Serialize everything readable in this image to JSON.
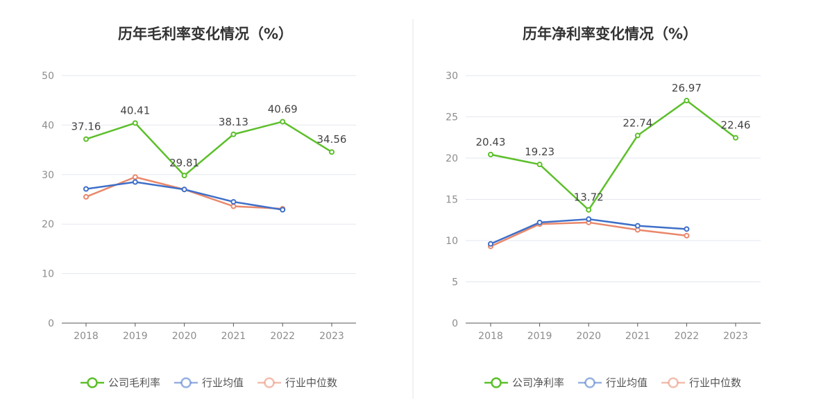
{
  "chart_data": [
    {
      "type": "line",
      "title": "历年毛利率变化情况（%）",
      "categories": [
        "2018",
        "2019",
        "2020",
        "2021",
        "2022",
        "2023"
      ],
      "ylim": [
        0,
        50
      ],
      "yticks": [
        0,
        10,
        20,
        30,
        40,
        50
      ],
      "grid": true,
      "legend_position": "bottom",
      "series": [
        {
          "name": "公司毛利率",
          "color": "#5cbf2a",
          "labels": true,
          "values": [
            37.16,
            40.41,
            29.81,
            38.13,
            40.69,
            34.56
          ]
        },
        {
          "name": "行业均值",
          "color": "#3e6fc8",
          "labels": false,
          "values": [
            27.1,
            28.5,
            27.0,
            24.5,
            22.9,
            null
          ]
        },
        {
          "name": "行业中位数",
          "color": "#e9876a",
          "labels": false,
          "values": [
            25.5,
            29.5,
            27.0,
            23.6,
            23.1,
            null
          ]
        }
      ],
      "data_labels": [
        "37.16",
        "40.41",
        "29.81",
        "38.13",
        "40.69",
        "34.56"
      ]
    },
    {
      "type": "line",
      "title": "历年净利率变化情况（%）",
      "categories": [
        "2018",
        "2019",
        "2020",
        "2021",
        "2022",
        "2023"
      ],
      "ylim": [
        0,
        30
      ],
      "yticks": [
        0,
        5,
        10,
        15,
        20,
        25,
        30
      ],
      "grid": true,
      "legend_position": "bottom",
      "series": [
        {
          "name": "公司净利率",
          "color": "#5cbf2a",
          "labels": true,
          "values": [
            20.43,
            19.23,
            13.72,
            22.74,
            26.97,
            22.46
          ]
        },
        {
          "name": "行业均值",
          "color": "#3e6fc8",
          "labels": false,
          "values": [
            9.6,
            12.2,
            12.6,
            11.8,
            11.4,
            null
          ]
        },
        {
          "name": "行业中位数",
          "color": "#e9876a",
          "labels": false,
          "values": [
            9.3,
            12.0,
            12.2,
            11.3,
            10.6,
            null
          ]
        }
      ],
      "data_labels": [
        "20.43",
        "19.23",
        "13.72",
        "22.74",
        "26.97",
        "22.46"
      ]
    }
  ]
}
